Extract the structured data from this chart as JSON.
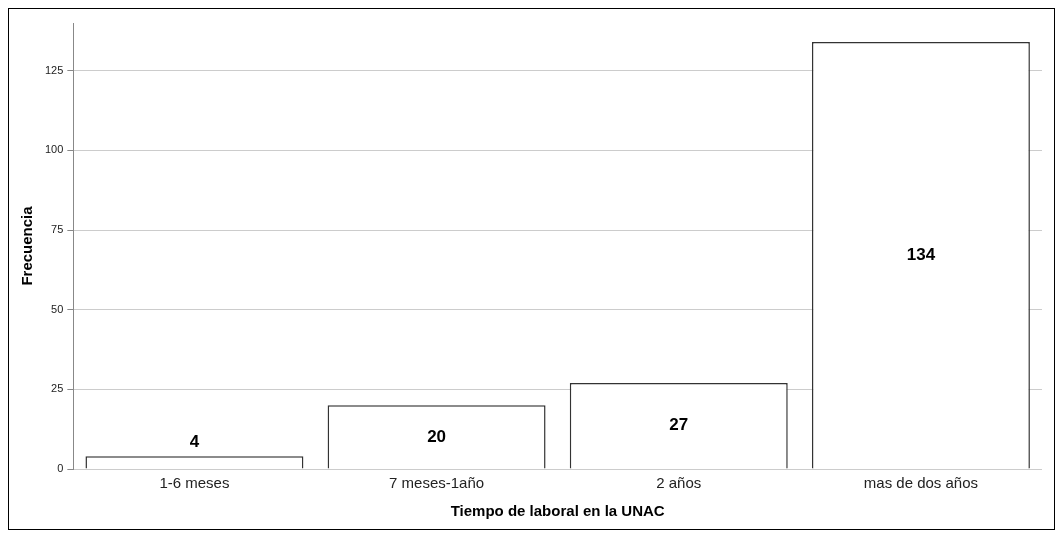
{
  "chart_data": {
    "type": "bar",
    "xlabel": "Tiempo de laboral en la UNAC",
    "ylabel": "Frecuencia",
    "categories": [
      "1-6 meses",
      "7 meses-1año",
      "2 años",
      "mas de dos años"
    ],
    "values": [
      4,
      20,
      27,
      134
    ],
    "color": "#ffffff",
    "ylim": [
      0,
      140
    ],
    "yticks": [
      0,
      25,
      50,
      75,
      100,
      125
    ],
    "grid": "y",
    "data_labels": true,
    "legend": false
  }
}
